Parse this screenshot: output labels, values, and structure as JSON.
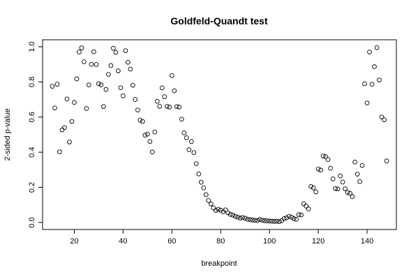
{
  "chart_data": {
    "type": "scatter",
    "title": "Goldfeld-Quandt test",
    "xlabel": "breakpoint",
    "ylabel": "2-sided p-value",
    "xlim": [
      7,
      152
    ],
    "ylim": [
      -0.04,
      1.04
    ],
    "xticks": [
      20,
      40,
      60,
      80,
      100,
      120,
      140
    ],
    "yticks": [
      0.0,
      0.2,
      0.4,
      0.6,
      0.8,
      1.0
    ],
    "ytick_labels": [
      "0.0",
      "0.2",
      "0.4",
      "0.6",
      "0.8",
      "1.0"
    ],
    "grid": false,
    "marker": "open-circle",
    "x": [
      11,
      12,
      13,
      14,
      15,
      16,
      17,
      18,
      19,
      20,
      21,
      22,
      23,
      24,
      25,
      26,
      27,
      28,
      29,
      30,
      31,
      32,
      33,
      34,
      35,
      36,
      37,
      38,
      39,
      40,
      41,
      42,
      43,
      44,
      45,
      46,
      47,
      48,
      49,
      50,
      51,
      52,
      53,
      54,
      55,
      56,
      57,
      58,
      59,
      60,
      61,
      62,
      63,
      64,
      65,
      66,
      67,
      68,
      69,
      70,
      71,
      72,
      73,
      74,
      75,
      76,
      77,
      78,
      79,
      80,
      81,
      82,
      83,
      84,
      85,
      86,
      87,
      88,
      89,
      90,
      91,
      92,
      93,
      94,
      95,
      96,
      97,
      98,
      99,
      100,
      101,
      102,
      103,
      104,
      105,
      106,
      107,
      108,
      109,
      110,
      111,
      112,
      113,
      114,
      115,
      116,
      117,
      118,
      119,
      120,
      121,
      122,
      123,
      124,
      125,
      126,
      127,
      128,
      129,
      130,
      131,
      132,
      133,
      134,
      135,
      136,
      137,
      138,
      139,
      140,
      141,
      142,
      143,
      144,
      145,
      146,
      147,
      148
    ],
    "y": [
      0.775,
      0.652,
      0.787,
      0.402,
      0.527,
      0.54,
      0.703,
      0.458,
      0.575,
      0.683,
      0.817,
      0.97,
      0.994,
      0.915,
      0.649,
      0.783,
      0.9,
      0.972,
      0.899,
      0.79,
      0.783,
      0.66,
      0.757,
      0.843,
      0.893,
      0.992,
      0.968,
      0.863,
      0.767,
      0.721,
      0.978,
      0.912,
      0.873,
      0.781,
      0.7,
      0.64,
      0.582,
      0.575,
      0.497,
      0.503,
      0.461,
      0.401,
      0.515,
      0.689,
      0.661,
      0.766,
      0.716,
      0.661,
      0.657,
      0.836,
      0.75,
      0.66,
      0.657,
      0.588,
      0.51,
      0.482,
      0.414,
      0.461,
      0.398,
      0.335,
      0.276,
      0.229,
      0.197,
      0.158,
      0.125,
      0.106,
      0.083,
      0.068,
      0.075,
      0.07,
      0.06,
      0.072,
      0.055,
      0.046,
      0.042,
      0.035,
      0.03,
      0.025,
      0.028,
      0.024,
      0.018,
      0.016,
      0.014,
      0.012,
      0.011,
      0.016,
      0.013,
      0.01,
      0.009,
      0.008,
      0.007,
      0.006,
      0.007,
      0.005,
      0.01,
      0.022,
      0.026,
      0.035,
      0.03,
      0.022,
      0.018,
      0.045,
      0.043,
      0.107,
      0.093,
      0.077,
      0.205,
      0.197,
      0.174,
      0.304,
      0.298,
      0.378,
      0.375,
      0.358,
      0.309,
      0.248,
      0.193,
      0.191,
      0.265,
      0.23,
      0.192,
      0.171,
      0.166,
      0.147,
      0.344,
      0.275,
      0.233,
      0.324,
      0.79,
      0.68,
      0.97,
      0.787,
      0.887,
      0.995,
      0.811,
      0.6,
      0.585,
      0.35
    ]
  }
}
